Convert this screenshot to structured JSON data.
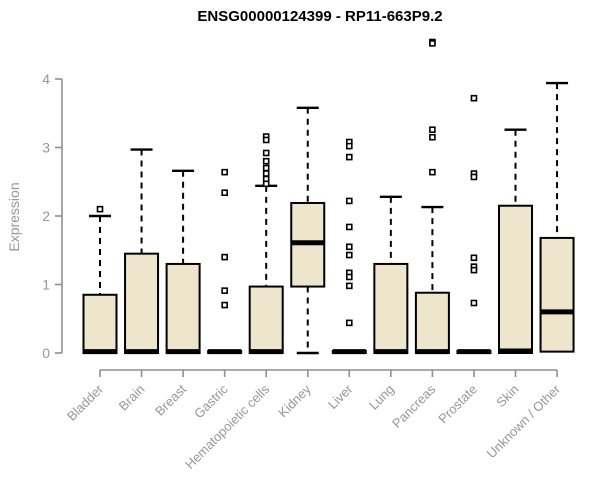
{
  "title": "ENSG00000124399 - RP11-663P9.2",
  "y_axis": {
    "label": "Expression",
    "ticks": [
      "0",
      "1",
      "2",
      "3",
      "4"
    ]
  },
  "chart_data": {
    "type": "boxplot",
    "title": "ENSG00000124399 - RP11-663P9.2",
    "xlabel": "",
    "ylabel": "Expression",
    "ylim": [
      0,
      4.6
    ],
    "y_ticks": [
      0,
      1,
      2,
      3,
      4
    ],
    "grid": false,
    "legend": null,
    "categories": [
      "Bladder",
      "Brain",
      "Breast",
      "Gastric",
      "Hematopoietic cells",
      "Kidney",
      "Liver",
      "Lung",
      "Pancreas",
      "Prostate",
      "Skin",
      "Unknown / Other"
    ],
    "boxes": [
      {
        "category": "Bladder",
        "q1": 0,
        "median": 0.02,
        "q3": 0.85,
        "whisker_low": 0,
        "whisker_high": 2.0,
        "outliers": [
          2.1
        ]
      },
      {
        "category": "Brain",
        "q1": 0,
        "median": 0.02,
        "q3": 1.45,
        "whisker_low": 0,
        "whisker_high": 2.97,
        "outliers": []
      },
      {
        "category": "Breast",
        "q1": 0,
        "median": 0.02,
        "q3": 1.3,
        "whisker_low": 0,
        "whisker_high": 2.66,
        "outliers": []
      },
      {
        "category": "Gastric",
        "q1": 0,
        "median": 0.02,
        "q3": 0.03,
        "whisker_low": 0,
        "whisker_high": 0.03,
        "outliers": [
          2.64,
          2.34,
          1.4,
          0.91,
          0.7
        ]
      },
      {
        "category": "Hematopoietic cells",
        "q1": 0,
        "median": 0.02,
        "q3": 0.97,
        "whisker_low": 0,
        "whisker_high": 2.44,
        "outliers": [
          3.16,
          3.11,
          2.92,
          2.8,
          2.7,
          2.62,
          2.54,
          2.47
        ]
      },
      {
        "category": "Kidney",
        "q1": 0.97,
        "median": 1.61,
        "q3": 2.19,
        "whisker_low": 0,
        "whisker_high": 3.58,
        "outliers": []
      },
      {
        "category": "Liver",
        "q1": 0,
        "median": 0.02,
        "q3": 0.03,
        "whisker_low": 0,
        "whisker_high": 0.03,
        "outliers": [
          3.08,
          3.02,
          2.86,
          2.22,
          1.84,
          1.55,
          1.43,
          1.17,
          1.11,
          0.98,
          0.44
        ]
      },
      {
        "category": "Lung",
        "q1": 0,
        "median": 0.02,
        "q3": 1.3,
        "whisker_low": 0,
        "whisker_high": 2.28,
        "outliers": []
      },
      {
        "category": "Pancreas",
        "q1": 0,
        "median": 0.02,
        "q3": 0.88,
        "whisker_low": 0,
        "whisker_high": 2.13,
        "outliers": [
          4.54,
          4.52,
          3.26,
          3.15,
          2.64
        ]
      },
      {
        "category": "Prostate",
        "q1": 0,
        "median": 0.02,
        "q3": 0.03,
        "whisker_low": 0,
        "whisker_high": 0.03,
        "outliers": [
          3.72,
          2.62,
          2.57,
          1.39,
          1.26,
          1.21,
          0.73
        ]
      },
      {
        "category": "Skin",
        "q1": 0,
        "median": 0.03,
        "q3": 2.15,
        "whisker_low": 0,
        "whisker_high": 3.26,
        "outliers": []
      },
      {
        "category": "Unknown / Other",
        "q1": 0.02,
        "median": 0.6,
        "q3": 1.68,
        "whisker_low": 0.02,
        "whisker_high": 3.94,
        "outliers": []
      }
    ]
  },
  "colors": {
    "box_fill": "#ede6cd",
    "box_border": "#000000",
    "median": "#000000",
    "whisker": "#000000",
    "outlier": "#000000",
    "axis": "#8f8f8f",
    "tick_text": "#979797",
    "title_text": "#000000",
    "background": "#ffffff"
  }
}
